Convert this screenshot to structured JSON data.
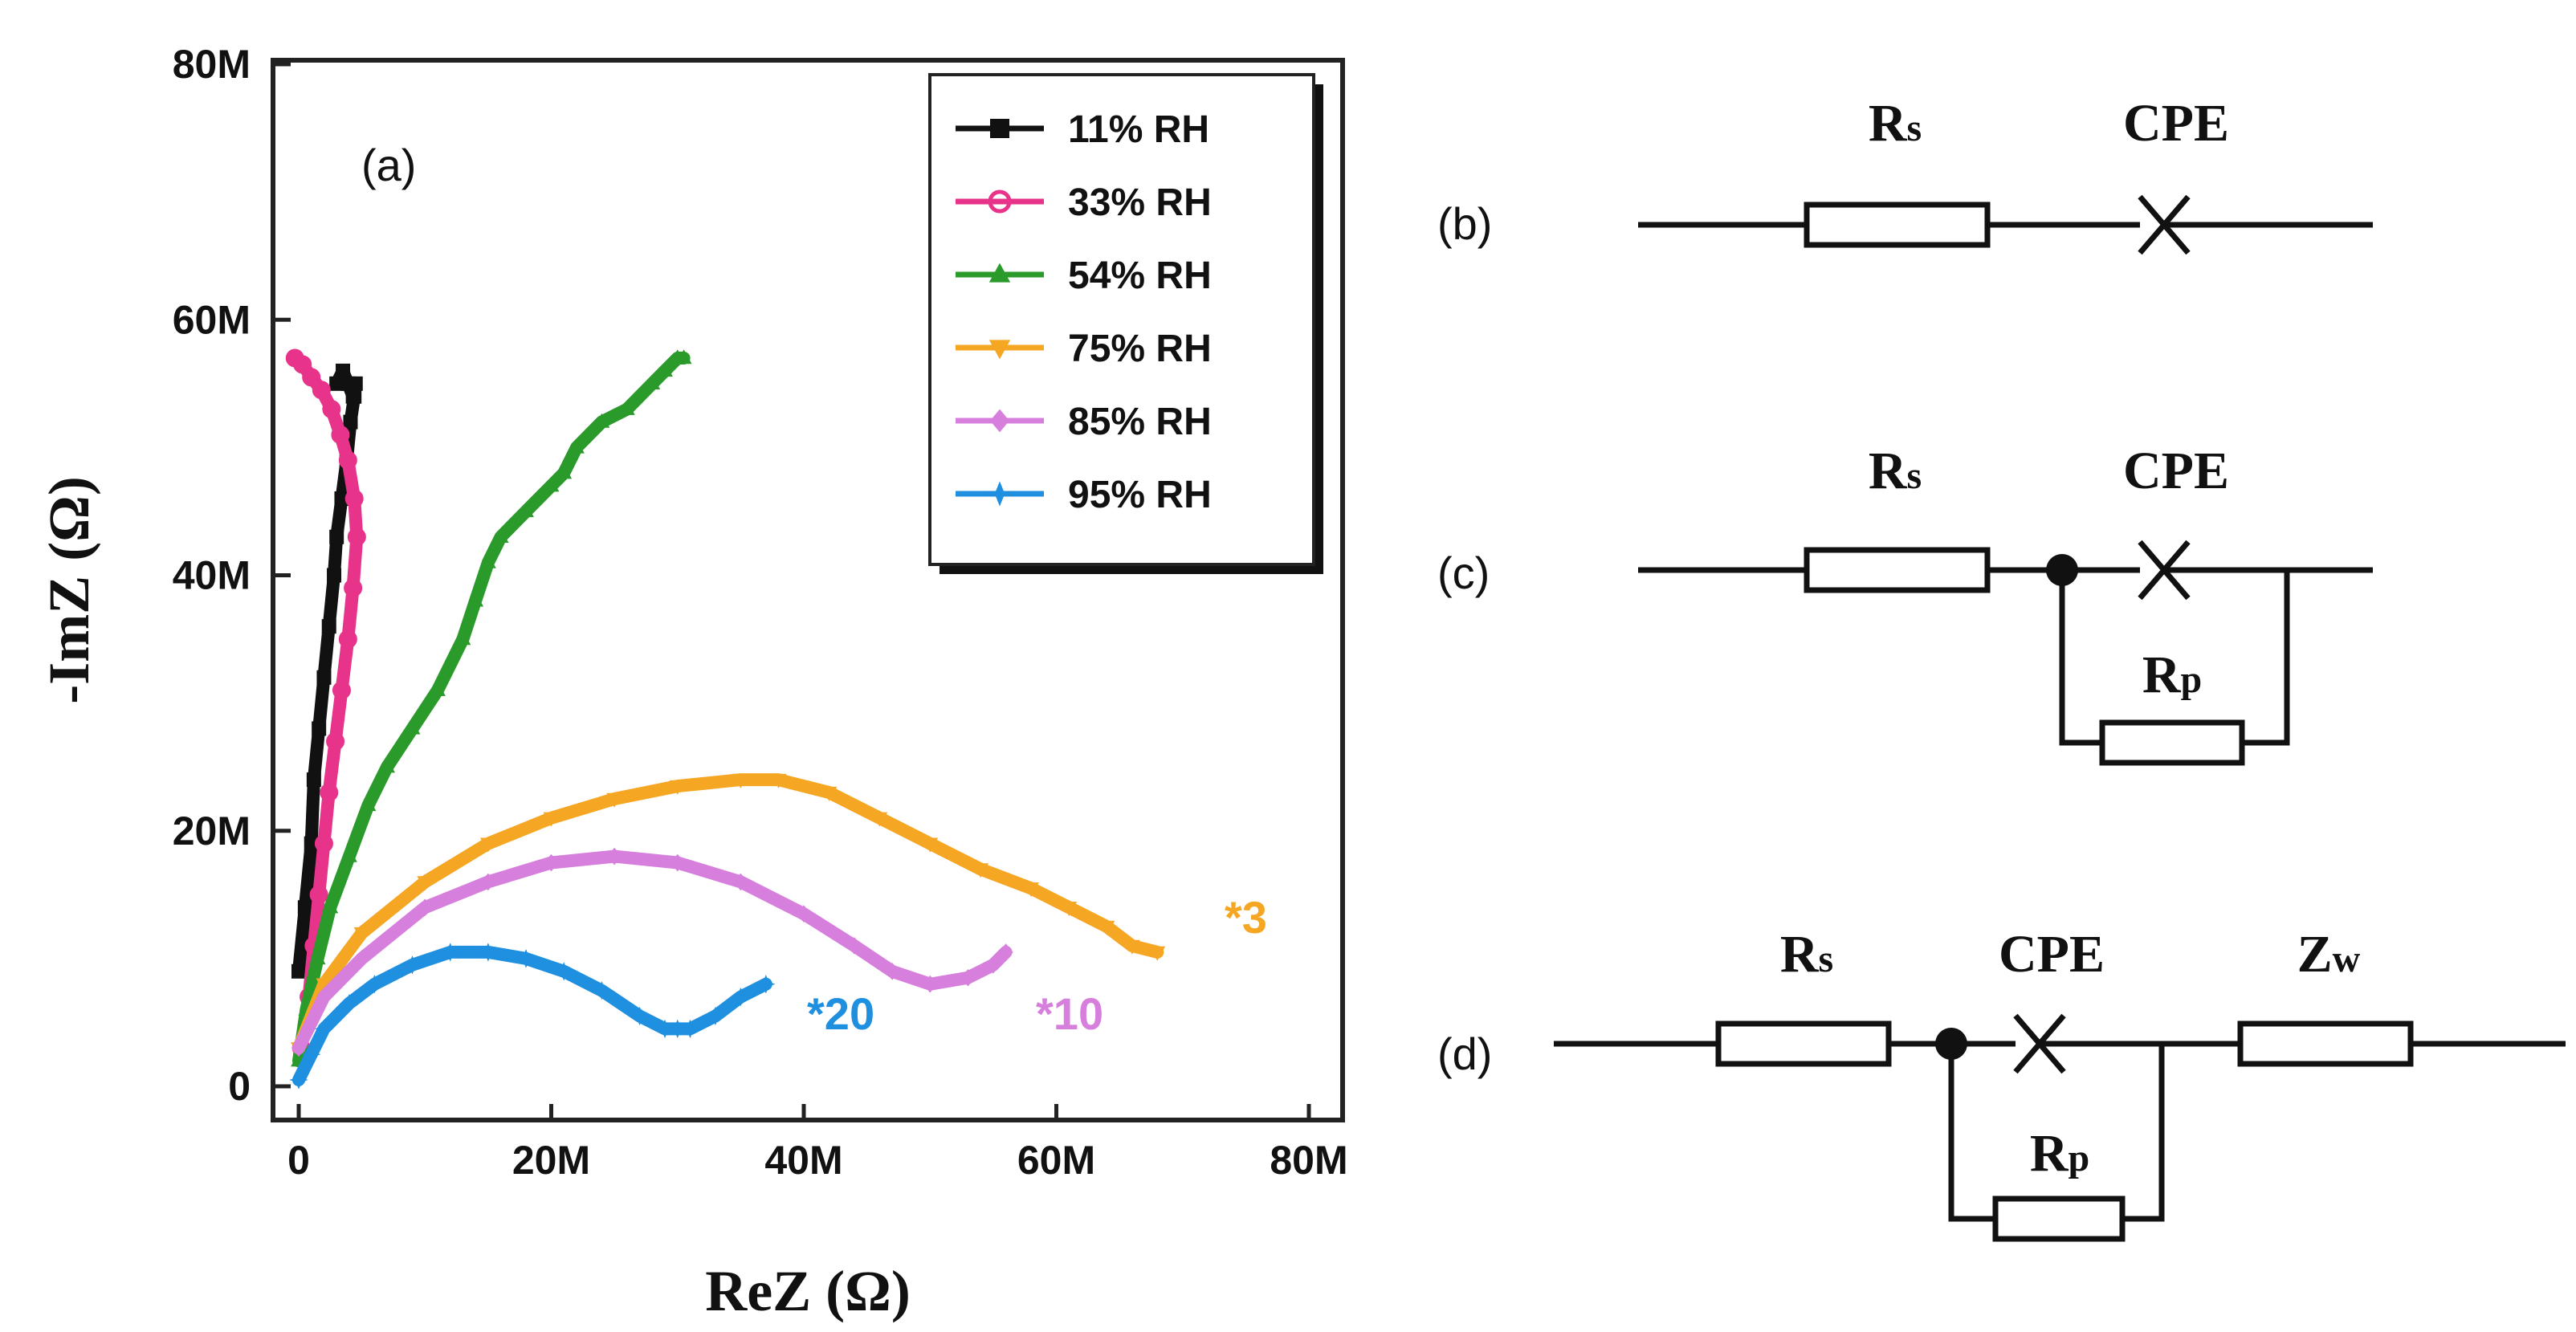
{
  "chart_data": {
    "type": "scatter",
    "panel_label": "(a)",
    "xlabel": "ReZ (Ω)",
    "ylabel": "-ImZ (Ω)",
    "xlim": [
      0,
      80
    ],
    "ylim": [
      0,
      80
    ],
    "x_ticks": [
      "0",
      "20M",
      "40M",
      "60M",
      "80M"
    ],
    "y_ticks": [
      "0",
      "20M",
      "40M",
      "60M",
      "80M"
    ],
    "unit_note": "values in MΩ",
    "legend_position": "top-right",
    "series": [
      {
        "name": "11% RH",
        "color": "#111111",
        "marker": "square",
        "x": [
          0.0,
          0.5,
          1.0,
          1.2,
          1.6,
          2.0,
          2.4,
          2.8,
          3.0,
          3.4,
          3.8,
          4.1,
          4.4,
          4.5,
          4.3,
          3.9,
          3.5,
          3.0
        ],
        "y": [
          9,
          14,
          19,
          24,
          28,
          32,
          36,
          40,
          43,
          46,
          49,
          52,
          54,
          55,
          54,
          55,
          56,
          55
        ]
      },
      {
        "name": "33% RH",
        "color": "#e8338b",
        "marker": "circle",
        "x": [
          0.2,
          0.8,
          1.2,
          1.6,
          2.0,
          2.4,
          2.9,
          3.4,
          3.9,
          4.3,
          4.6,
          4.4,
          3.9,
          3.3,
          2.6,
          1.8,
          1.0,
          0.3,
          -0.3
        ],
        "y": [
          3,
          7,
          11,
          15,
          19,
          23,
          27,
          31,
          35,
          39,
          43,
          46,
          49,
          51,
          53,
          54.5,
          55.5,
          56.5,
          57
        ]
      },
      {
        "name": "54% RH",
        "color": "#2a9a2a",
        "marker": "triangle",
        "x": [
          0.0,
          0.6,
          1.5,
          2.5,
          4.0,
          5.5,
          7.0,
          9.0,
          11.0,
          13.0,
          14.0,
          15.0,
          16.0,
          18.0,
          20.0,
          21.0,
          22.0,
          24.0,
          26.0,
          28.0,
          29.0,
          30.0,
          30.5
        ],
        "y": [
          2,
          6,
          10,
          14,
          18,
          22,
          25,
          28,
          31,
          35,
          38,
          41,
          43,
          45,
          47,
          48,
          50,
          52,
          53,
          55,
          56,
          57,
          57
        ]
      },
      {
        "name": "75% RH",
        "color": "#f5a623",
        "marker": "triangle-down",
        "x": [
          0.0,
          2.0,
          5.0,
          10.0,
          15.0,
          20.0,
          25.0,
          30.0,
          35.0,
          38.0,
          42.0,
          46.0,
          50.0,
          54.0,
          58.0,
          61.0,
          64.0,
          66.0,
          68.0
        ],
        "y": [
          3,
          8,
          12,
          16,
          19,
          21,
          22.5,
          23.5,
          24,
          24,
          23,
          21,
          19,
          17,
          15.5,
          14,
          12.5,
          11,
          10.5
        ]
      },
      {
        "name": "85% RH",
        "color": "#d77fdd",
        "marker": "diamond",
        "x": [
          0.0,
          2.0,
          5.0,
          10.0,
          15.0,
          20.0,
          25.0,
          30.0,
          35.0,
          40.0,
          44.0,
          47.0,
          50.0,
          53.0,
          55.0,
          56.0
        ],
        "y": [
          3,
          7,
          10,
          14,
          16,
          17.5,
          18,
          17.5,
          16,
          13.5,
          11,
          9,
          8,
          8.5,
          9.5,
          10.5
        ]
      },
      {
        "name": "95% RH",
        "color": "#1f8fe0",
        "marker": "star",
        "x": [
          0.0,
          1.0,
          2.0,
          4.0,
          6.0,
          9.0,
          12.0,
          15.0,
          18.0,
          21.0,
          24.0,
          27.0,
          29.0,
          30.0,
          31.0,
          33.0,
          35.0,
          37.0
        ],
        "y": [
          0.5,
          2.5,
          4.5,
          6.5,
          8,
          9.5,
          10.5,
          10.5,
          10,
          9,
          7.5,
          5.5,
          4.5,
          4.5,
          4.5,
          5.5,
          7,
          8
        ]
      }
    ],
    "annotations": [
      {
        "text": "*3",
        "series": "75% RH"
      },
      {
        "text": "*10",
        "series": "85% RH"
      },
      {
        "text": "*20",
        "series": "95% RH"
      }
    ]
  },
  "circuits": [
    {
      "label": "(b)",
      "elements": [
        "Rs",
        "CPE"
      ]
    },
    {
      "label": "(c)",
      "elements": [
        "Rs",
        "CPE",
        "Rp"
      ]
    },
    {
      "label": "(d)",
      "elements": [
        "Rs",
        "CPE",
        "Zw",
        "Rp"
      ]
    }
  ],
  "circuit_parts": {
    "Rs": {
      "main": "R",
      "sub": "s"
    },
    "Rp": {
      "main": "R",
      "sub": "p"
    },
    "Zw": {
      "main": "Z",
      "sub": "w"
    },
    "CPE": {
      "main": "CPE",
      "sub": ""
    }
  }
}
